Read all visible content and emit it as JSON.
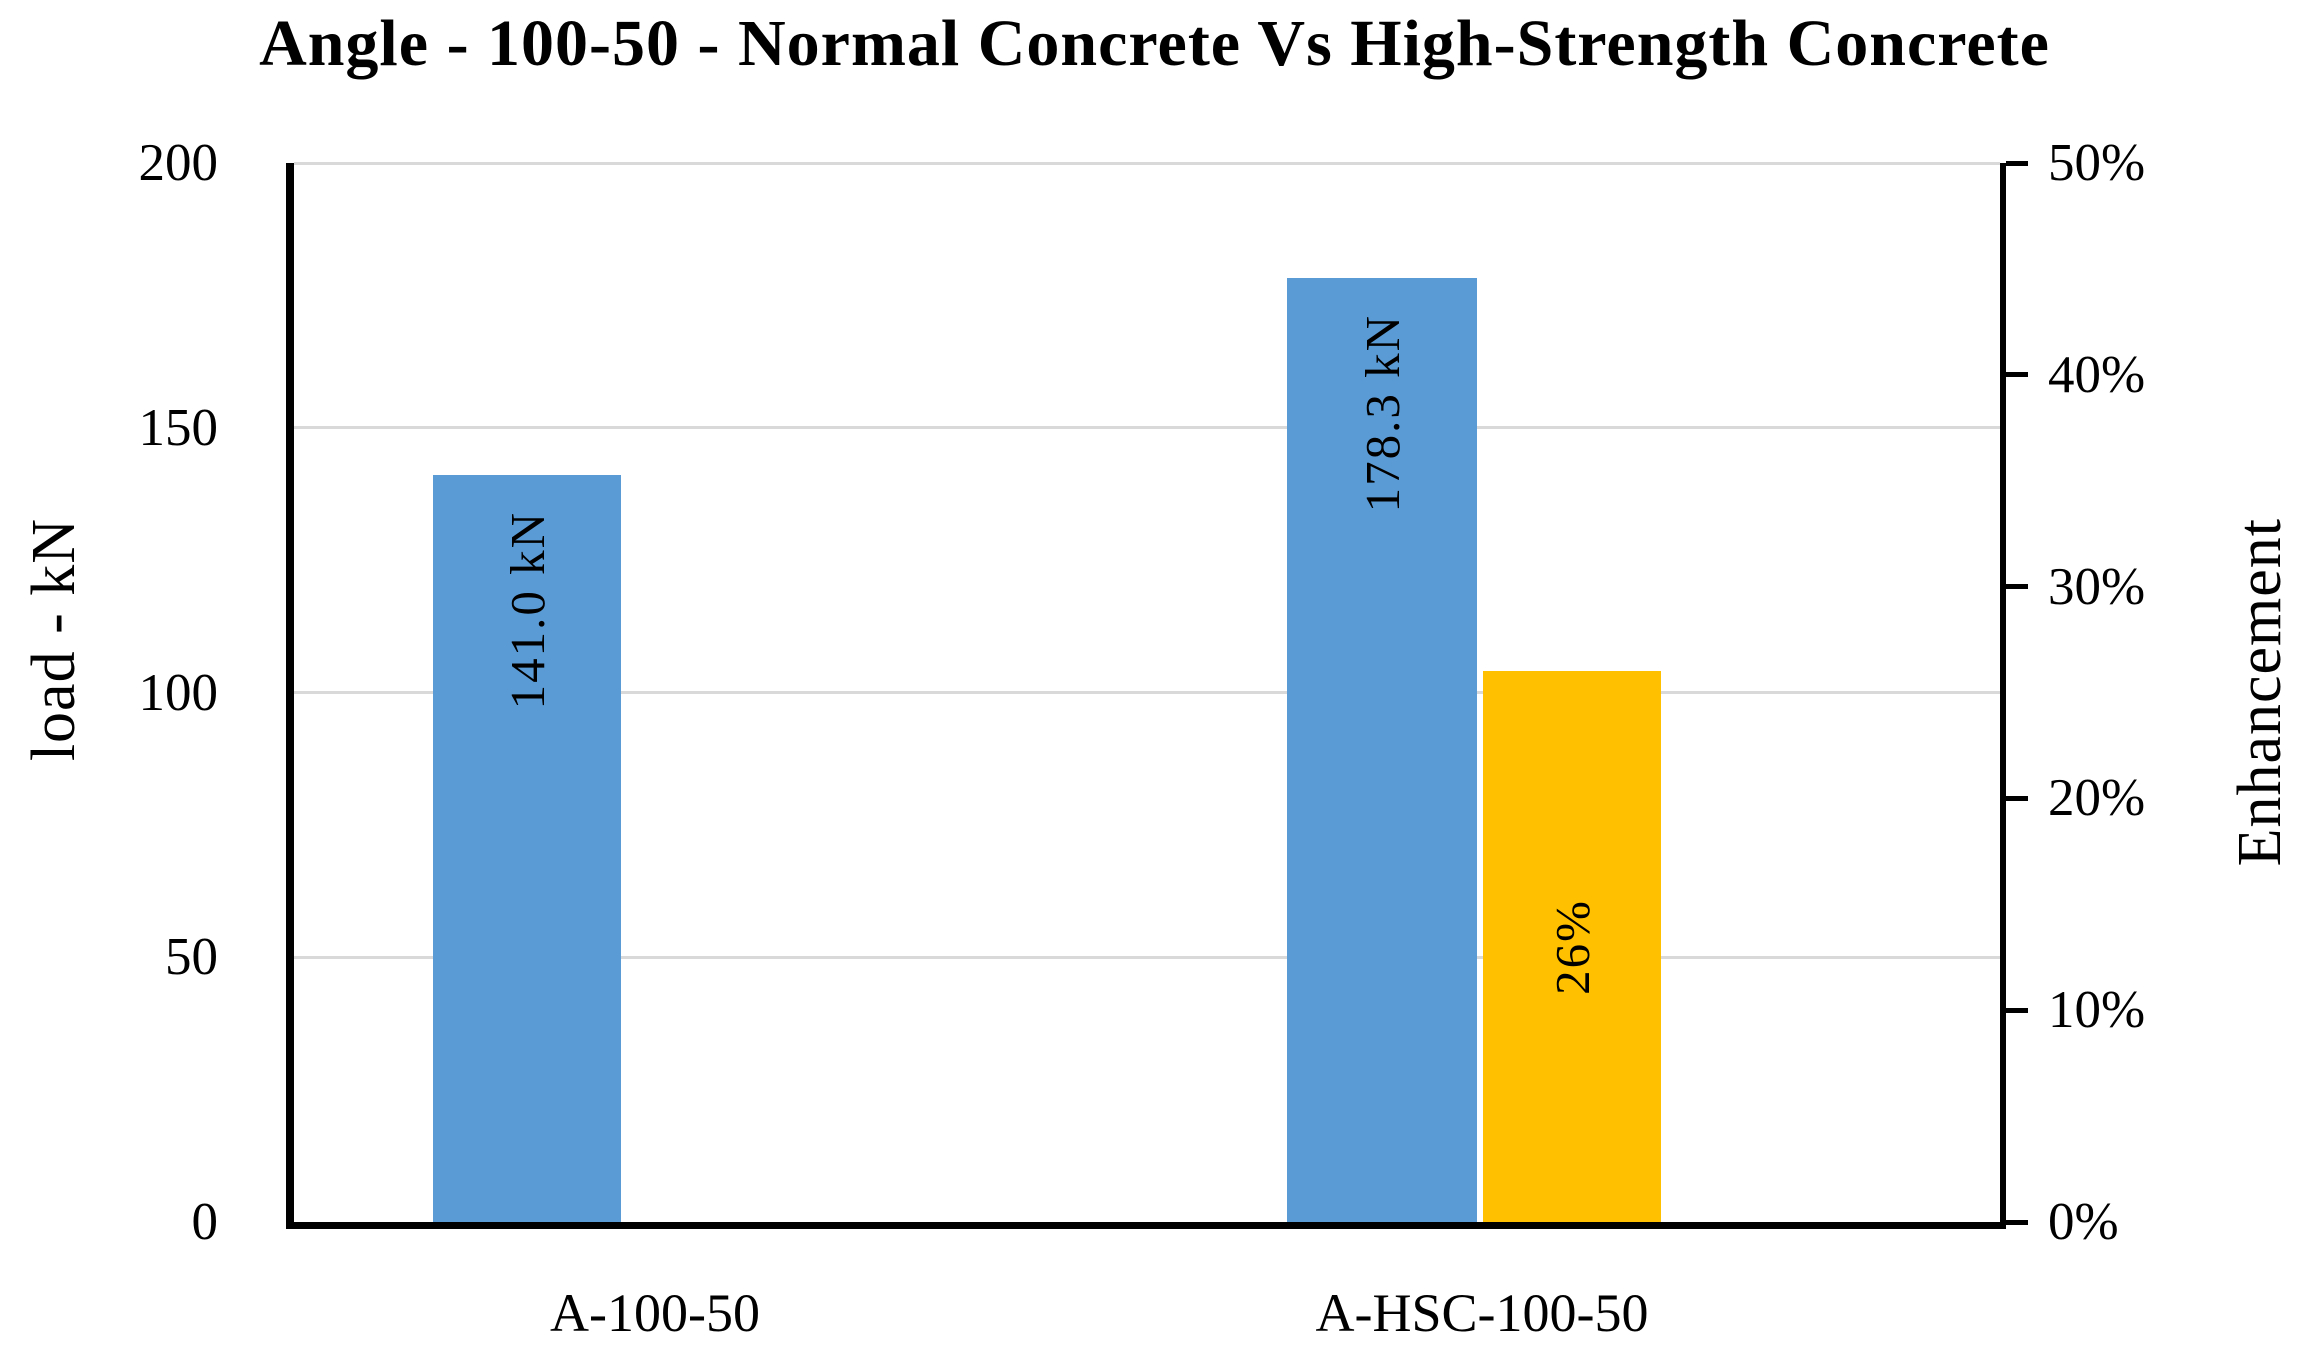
{
  "title": "Angle - 100-50 - Normal Concrete Vs High-Strength Concrete",
  "chart_data": {
    "type": "bar",
    "title": "Angle - 100-50 - Normal Concrete Vs High-Strength Concrete",
    "categories": [
      "A-100-50",
      "A-HSC-100-50"
    ],
    "series": [
      {
        "name": "load",
        "axis": "left",
        "color": "#5B9BD5",
        "values": [
          141.0,
          178.3
        ],
        "data_labels": [
          "141.0 kN",
          "178.3 kN"
        ],
        "label_position": "inside-end"
      },
      {
        "name": "enhancement",
        "axis": "right",
        "color": "#FFC000",
        "values": [
          null,
          26
        ],
        "data_labels": [
          null,
          "26%"
        ],
        "label_position": "center"
      }
    ],
    "left_axis": {
      "title": "load - kN",
      "min": 0,
      "max": 200,
      "step": 50,
      "tick_labels": [
        "0",
        "50",
        "100",
        "150",
        "200"
      ]
    },
    "right_axis": {
      "title": "Enhancement",
      "min": 0,
      "max": 50,
      "step": 10,
      "tick_labels": [
        "0%",
        "10%",
        "20%",
        "30%",
        "40%",
        "50%"
      ]
    },
    "grid": "horizontal gridlines at left-axis majors (50, 100, 150, 200)",
    "legend": "none",
    "colors": {
      "grid": "#D9D9D9",
      "axis": "#000000",
      "text": "#000000",
      "background": "#FFFFFF"
    }
  }
}
